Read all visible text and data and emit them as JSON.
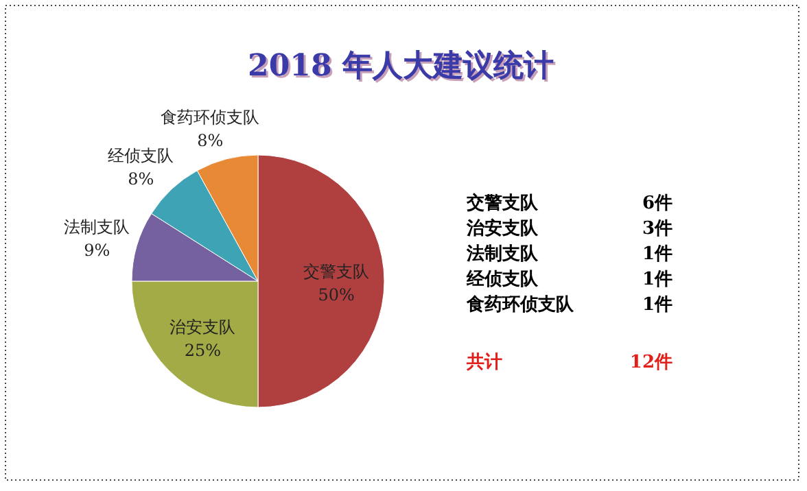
{
  "chart_data": [
    {
      "type": "pie",
      "title": "2018 年人大建议统计",
      "categories": [
        "交警支队",
        "治安支队",
        "法制支队",
        "经侦支队",
        "食药环侦支队"
      ],
      "values": [
        50,
        25,
        9,
        8,
        8
      ],
      "value_labels": [
        "50%",
        "25%",
        "9%",
        "8%",
        "8%"
      ],
      "colors": [
        "#b0403f",
        "#a2ab45",
        "#7560a0",
        "#3ea3b4",
        "#e88a35"
      ]
    },
    {
      "type": "other",
      "categories": [
        "交警支队",
        "治安支队",
        "法制支队",
        "经侦支队",
        "食药环侦支队"
      ],
      "value_labels": [
        "6件",
        "3件",
        "1件",
        "1件",
        "1件"
      ],
      "annotations": [
        "共计"
      ],
      "totals": [
        "12件"
      ]
    }
  ]
}
